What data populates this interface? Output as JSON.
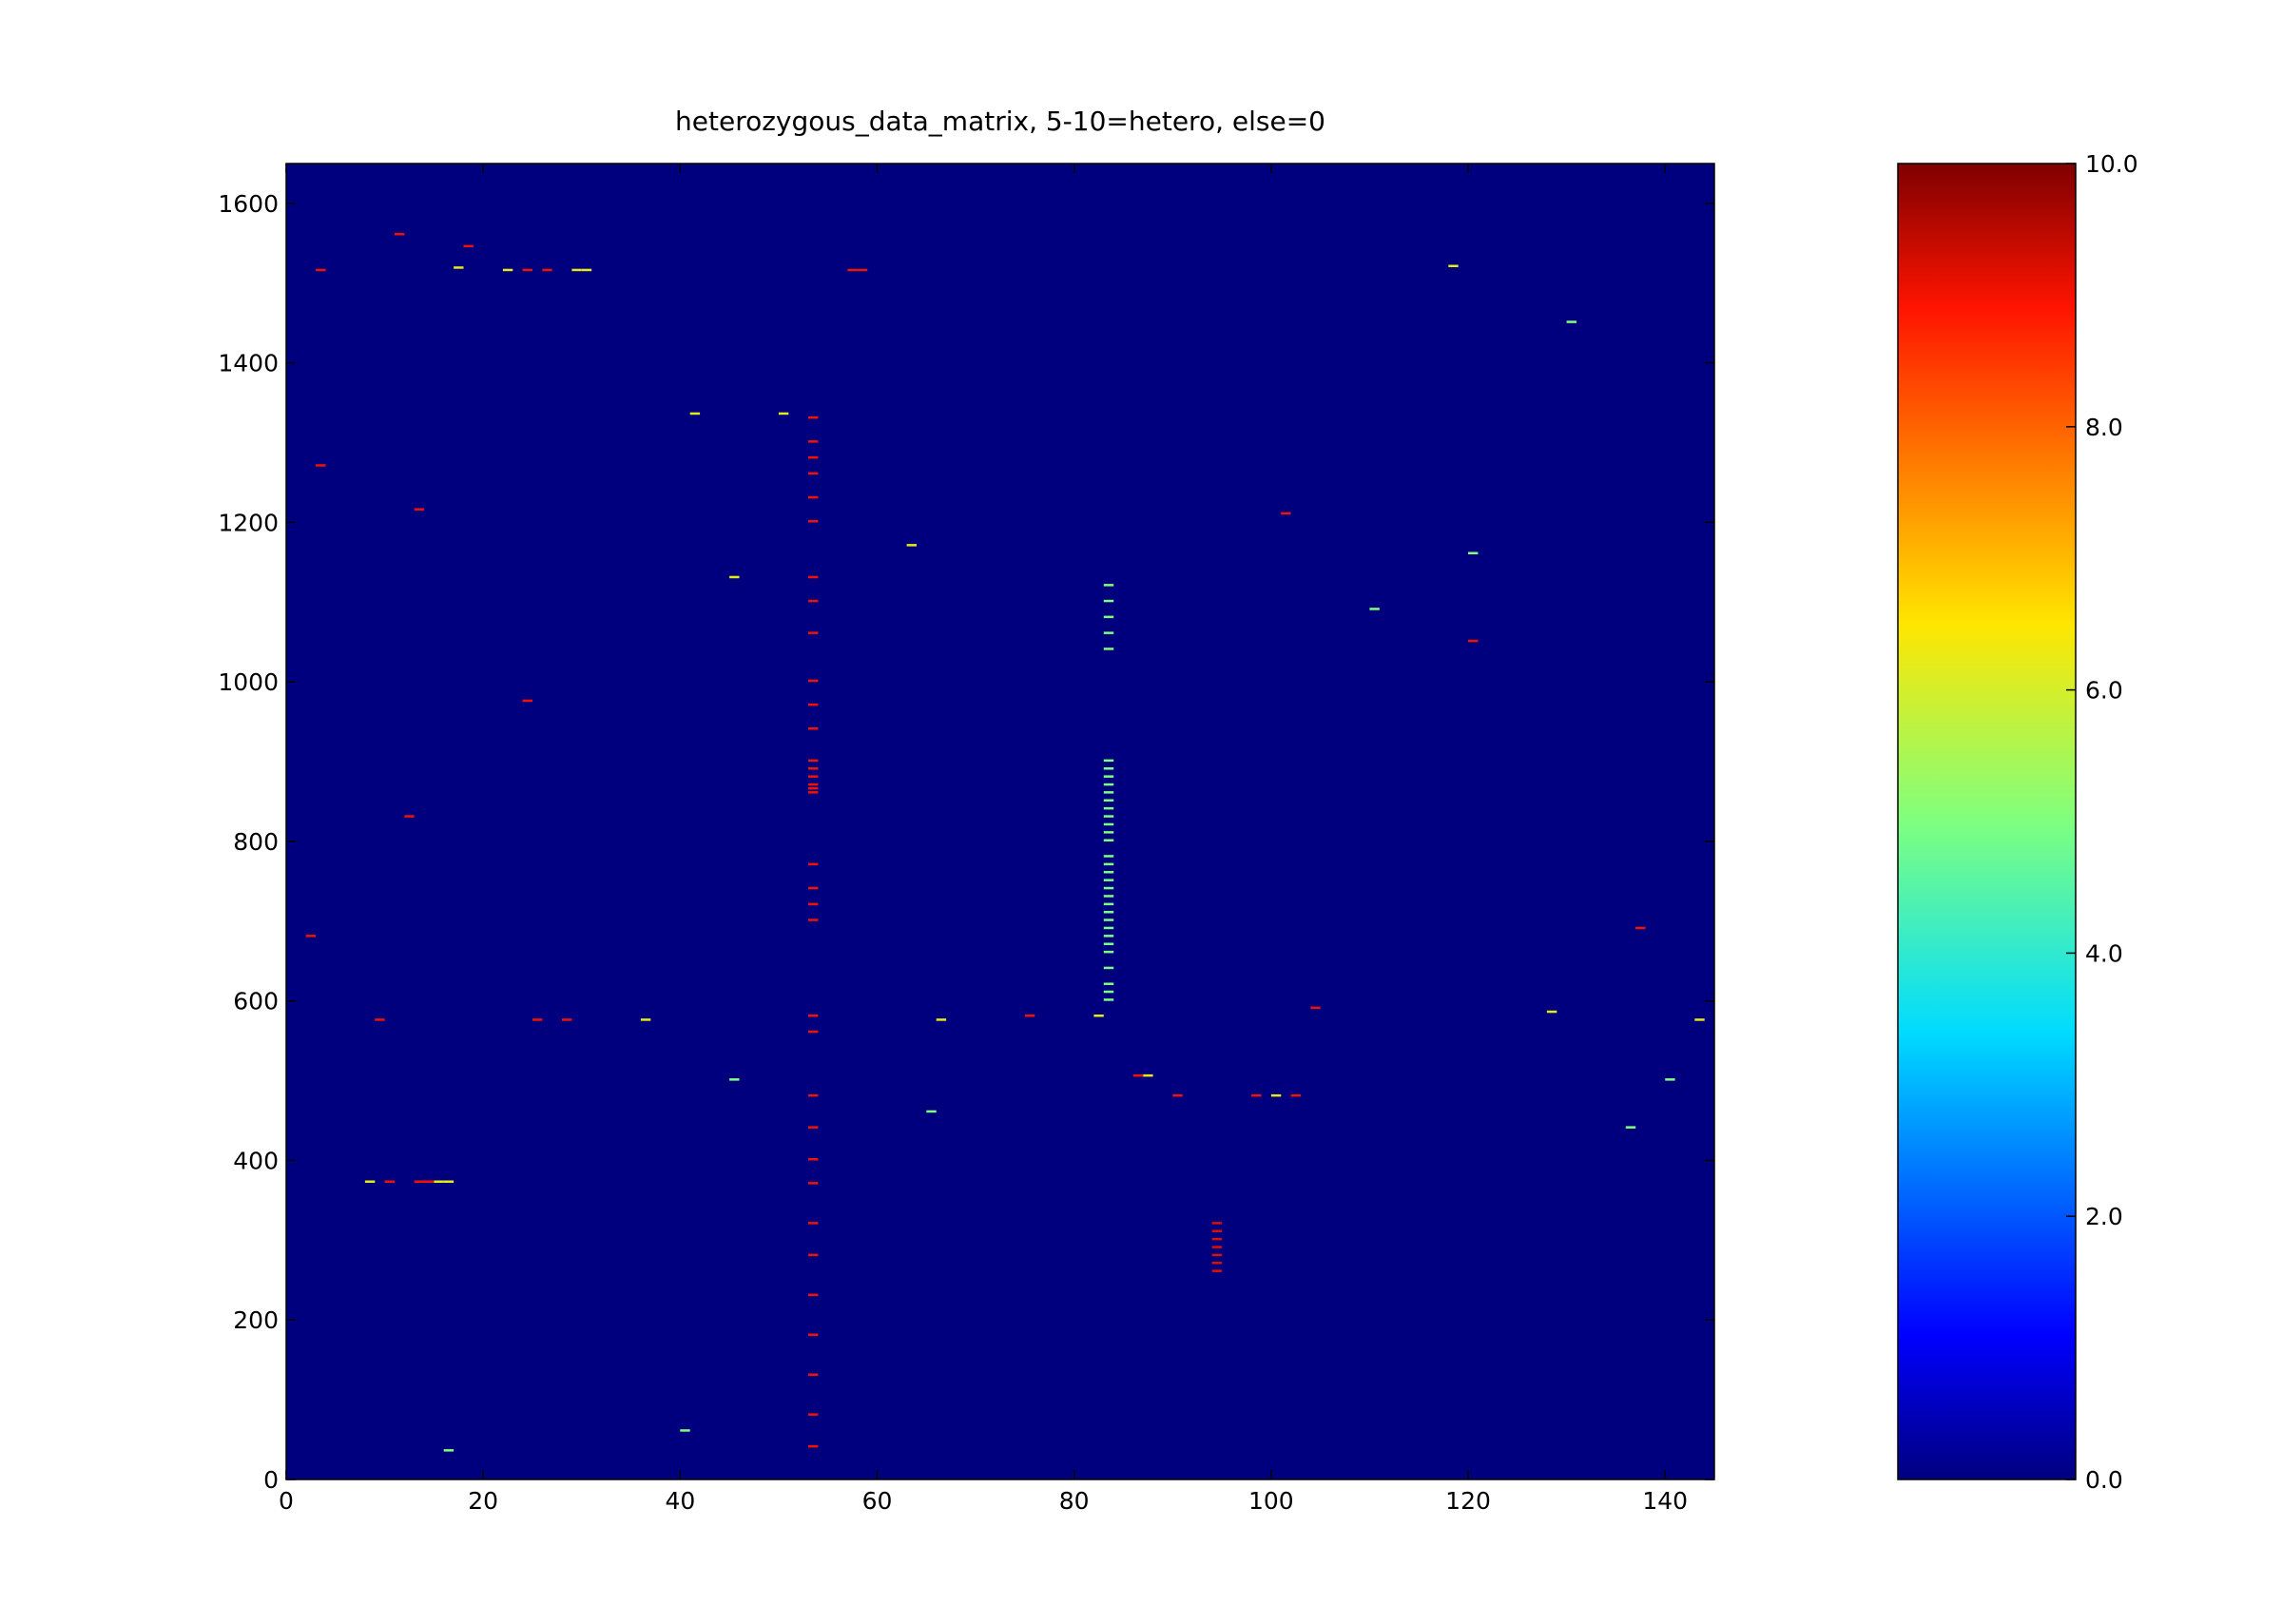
{
  "chart_data": {
    "type": "heatmap",
    "title": "heterozygous_data_matrix, 5-10=hetero, else=0",
    "xlabel": "",
    "ylabel": "",
    "xlim": [
      0,
      145
    ],
    "ylim": [
      0,
      1650
    ],
    "x_ticks": [
      "0",
      "20",
      "40",
      "60",
      "80",
      "100",
      "120",
      "140"
    ],
    "y_ticks": [
      "0",
      "200",
      "400",
      "600",
      "800",
      "1000",
      "1200",
      "1400",
      "1600"
    ],
    "colorbar": {
      "colormap": "jet",
      "range": [
        0.0,
        10.0
      ],
      "tick_labels": [
        "0.0",
        "2.0",
        "4.0",
        "6.0",
        "8.0",
        "10.0"
      ]
    },
    "background_value": 0,
    "grid": false,
    "n_columns": 145,
    "n_rows": 1650,
    "series": [
      {
        "value": 5.0,
        "cells": [
          [
            83,
            600
          ],
          [
            83,
            610
          ],
          [
            83,
            620
          ],
          [
            83,
            640
          ],
          [
            83,
            660
          ],
          [
            83,
            670
          ],
          [
            83,
            680
          ],
          [
            83,
            690
          ],
          [
            83,
            700
          ],
          [
            83,
            710
          ],
          [
            83,
            720
          ],
          [
            83,
            730
          ],
          [
            83,
            740
          ],
          [
            83,
            750
          ],
          [
            83,
            760
          ],
          [
            83,
            770
          ],
          [
            83,
            780
          ],
          [
            83,
            800
          ],
          [
            83,
            810
          ],
          [
            83,
            820
          ],
          [
            83,
            830
          ],
          [
            83,
            840
          ],
          [
            83,
            850
          ],
          [
            83,
            860
          ],
          [
            83,
            870
          ],
          [
            83,
            880
          ],
          [
            83,
            890
          ],
          [
            83,
            900
          ],
          [
            83,
            1040
          ],
          [
            83,
            1060
          ],
          [
            83,
            1080
          ],
          [
            83,
            1100
          ],
          [
            83,
            1120
          ],
          [
            16,
            35
          ],
          [
            40,
            60
          ],
          [
            45,
            500
          ],
          [
            65,
            460
          ],
          [
            110,
            1090
          ],
          [
            120,
            1160
          ],
          [
            130,
            1450
          ],
          [
            136,
            440
          ],
          [
            140,
            500
          ]
        ]
      },
      {
        "value": 6.2,
        "cells": [
          [
            30,
            1515
          ],
          [
            29,
            1515
          ],
          [
            22,
            1515
          ],
          [
            8,
            372
          ],
          [
            15,
            372
          ],
          [
            16,
            372
          ],
          [
            36,
            575
          ],
          [
            66,
            575
          ],
          [
            82,
            580
          ],
          [
            87,
            505
          ],
          [
            100,
            480
          ],
          [
            45,
            1130
          ],
          [
            63,
            1170
          ],
          [
            128,
            585
          ],
          [
            143,
            575
          ],
          [
            17,
            1518
          ],
          [
            41,
            1335
          ],
          [
            50,
            1335
          ],
          [
            118,
            1520
          ]
        ]
      },
      {
        "value": 9.0,
        "cells": [
          [
            53,
            860
          ],
          [
            53,
            865
          ],
          [
            53,
            870
          ],
          [
            53,
            880
          ],
          [
            53,
            890
          ],
          [
            53,
            900
          ],
          [
            53,
            770
          ],
          [
            53,
            740
          ],
          [
            53,
            720
          ],
          [
            53,
            700
          ],
          [
            53,
            1330
          ],
          [
            53,
            1300
          ],
          [
            53,
            1280
          ],
          [
            53,
            1260
          ],
          [
            53,
            1230
          ],
          [
            53,
            1200
          ],
          [
            53,
            1130
          ],
          [
            53,
            1100
          ],
          [
            53,
            1060
          ],
          [
            53,
            1000
          ],
          [
            53,
            970
          ],
          [
            53,
            940
          ],
          [
            53,
            580
          ],
          [
            53,
            560
          ],
          [
            53,
            480
          ],
          [
            53,
            440
          ],
          [
            53,
            400
          ],
          [
            53,
            370
          ],
          [
            53,
            320
          ],
          [
            53,
            280
          ],
          [
            53,
            230
          ],
          [
            53,
            180
          ],
          [
            53,
            130
          ],
          [
            53,
            80
          ],
          [
            53,
            40
          ],
          [
            58,
            1515
          ],
          [
            57,
            1515
          ],
          [
            3,
            1515
          ],
          [
            24,
            1515
          ],
          [
            26,
            1515
          ],
          [
            10,
            372
          ],
          [
            13,
            372
          ],
          [
            14,
            372
          ],
          [
            9,
            575
          ],
          [
            25,
            575
          ],
          [
            28,
            575
          ],
          [
            102,
            480
          ],
          [
            98,
            480
          ],
          [
            86,
            505
          ],
          [
            90,
            480
          ],
          [
            18,
            1545
          ],
          [
            11,
            1560
          ],
          [
            3,
            1270
          ],
          [
            13,
            1215
          ],
          [
            24,
            975
          ],
          [
            12,
            830
          ],
          [
            2,
            680
          ],
          [
            101,
            1210
          ],
          [
            120,
            1050
          ],
          [
            137,
            690
          ],
          [
            75,
            580
          ],
          [
            104,
            590
          ]
        ]
      },
      {
        "value": 9.2,
        "cells": [
          [
            94,
            260
          ],
          [
            94,
            270
          ],
          [
            94,
            280
          ],
          [
            94,
            290
          ],
          [
            94,
            300
          ],
          [
            94,
            310
          ],
          [
            94,
            320
          ]
        ]
      }
    ]
  }
}
